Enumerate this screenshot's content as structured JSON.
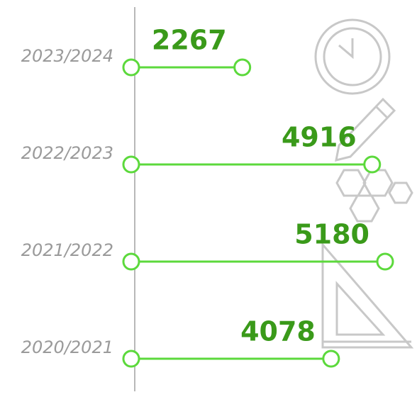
{
  "chart_data": {
    "type": "bar",
    "orientation": "horizontal",
    "categories": [
      "2023/2024",
      "2022/2023",
      "2021/2022",
      "2020/2021"
    ],
    "values": [
      2267,
      4916,
      5180,
      4078
    ],
    "color": "#5cd93c",
    "label_color": "#3a9a1a"
  }
}
